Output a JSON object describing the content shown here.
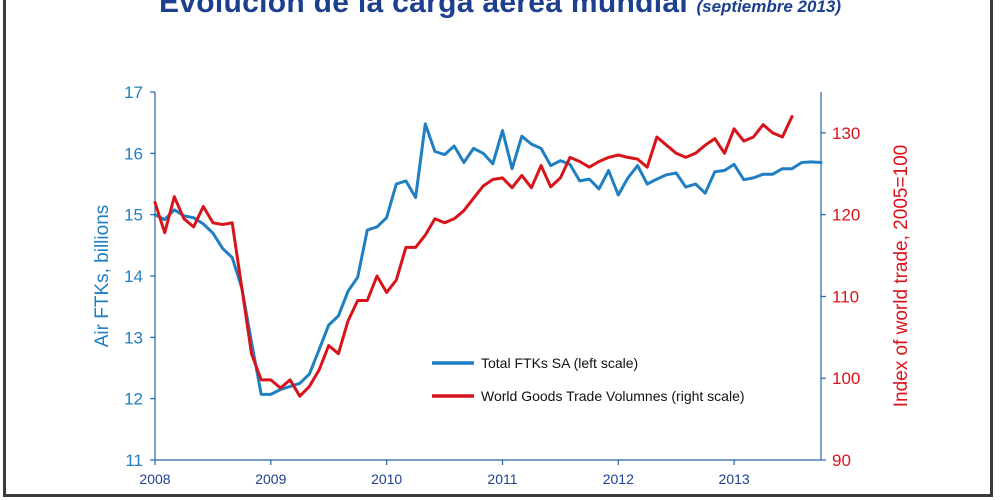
{
  "title": {
    "main": "Evolución de la carga aérea mundial",
    "subtitle": "(septiembre 2013)"
  },
  "colors": {
    "title": "#1d3f8f",
    "left_series": "#1f7fc2",
    "right_series": "#d8141b",
    "axis": "#2a64a8"
  },
  "chart_data": {
    "type": "line",
    "xlabel": "",
    "x_ticks": [
      "2008",
      "2009",
      "2010",
      "2011",
      "2012",
      "2013"
    ],
    "xlim": [
      2008.0,
      2013.75
    ],
    "ylabel_left": "Air FTKs, billions",
    "ylabel_right": "Index of world trade, 2005=100",
    "ylim_left": [
      11,
      17
    ],
    "ylim_right": [
      90,
      135
    ],
    "yticks_left": [
      "11",
      "12",
      "13",
      "14",
      "15",
      "16",
      "17"
    ],
    "yticks_right": [
      "90",
      "100",
      "110",
      "120",
      "130"
    ],
    "grid": false,
    "legend_position": "bottom-center",
    "x_start": 2008.0,
    "x_step": 0.08333,
    "series": [
      {
        "name": "Total FTKs SA (left scale)",
        "axis": "left",
        "values": [
          15.0,
          14.92,
          15.08,
          14.98,
          14.95,
          14.85,
          14.7,
          14.45,
          14.3,
          13.8,
          12.92,
          12.07,
          12.07,
          12.15,
          12.2,
          12.25,
          12.4,
          12.8,
          13.2,
          13.35,
          13.75,
          13.98,
          14.75,
          14.8,
          14.95,
          15.5,
          15.55,
          15.28,
          16.48,
          16.03,
          15.98,
          16.12,
          15.85,
          16.08,
          16.0,
          15.83,
          16.37,
          15.75,
          16.28,
          16.15,
          16.08,
          15.8,
          15.88,
          15.82,
          15.55,
          15.58,
          15.42,
          15.72,
          15.32,
          15.6,
          15.8,
          15.5,
          15.58,
          15.65,
          15.68,
          15.45,
          15.5,
          15.35,
          15.7,
          15.72,
          15.82,
          15.57,
          15.6,
          15.66,
          15.66,
          15.75,
          15.75,
          15.85,
          15.86,
          15.85
        ]
      },
      {
        "name": "World Goods Trade Volumnes (right scale)",
        "axis": "right",
        "values": [
          121.5,
          117.8,
          122.2,
          119.5,
          118.5,
          121.0,
          119.0,
          118.8,
          119.0,
          111.0,
          103.0,
          99.8,
          99.8,
          98.8,
          99.8,
          97.8,
          99.0,
          101.0,
          104.0,
          103.0,
          107.0,
          109.5,
          109.5,
          112.5,
          110.5,
          112.0,
          116.0,
          116.0,
          117.5,
          119.5,
          119.0,
          119.5,
          120.5,
          122.0,
          123.5,
          124.3,
          124.5,
          123.3,
          124.8,
          123.3,
          126.0,
          123.4,
          124.5,
          127.0,
          126.5,
          125.8,
          126.5,
          127.0,
          127.3,
          127.0,
          126.8,
          125.8,
          129.5,
          128.5,
          127.5,
          127.0,
          127.5,
          128.5,
          129.3,
          127.5,
          130.5,
          129.0,
          129.5,
          131.0,
          130.0,
          129.5,
          132.0
        ]
      }
    ]
  }
}
